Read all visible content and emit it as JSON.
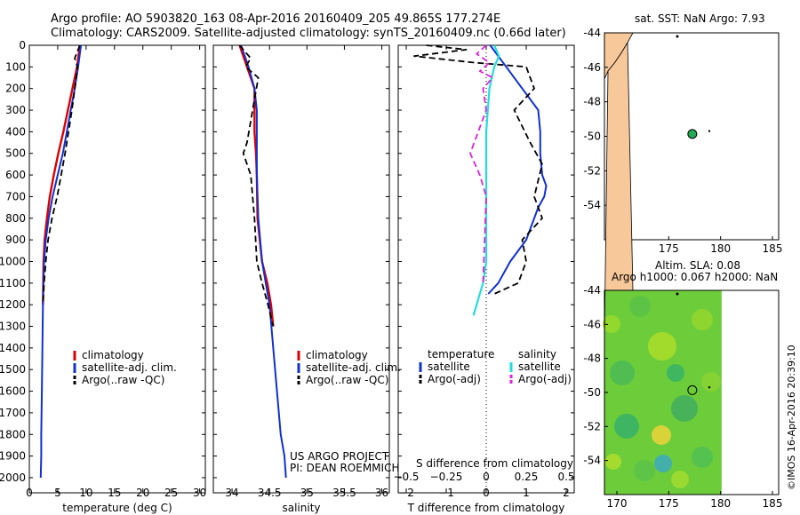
{
  "header": {
    "line1": "Argo profile: AO 5903820_163 08-Apr-2016 20160409_205 49.865S 177.274E",
    "line2": "Climatology: CARS2009. Satellite-adjusted climatology: synTS_20160409.nc (0.66d later)"
  },
  "colors": {
    "climatology": "#dd0000",
    "satellite": "#1030d0",
    "argo": "#000000",
    "salinity_sat": "#22dddd",
    "salinity_argo": "#dd22dd",
    "land": "#f7c89a",
    "argo_marker": "#22aa55"
  },
  "legend": {
    "climatology": "climatology",
    "satellite_adj": "satellite-adj. clim.",
    "argo": "Argo(..raw -QC)"
  },
  "diff_legend": {
    "temperature": "temperature",
    "salinity": "salinity",
    "satellite_t": "satellite",
    "argo_t": "Argo(-adj)",
    "satellite_s": "satellite",
    "argo_s": "Argo(-adj)"
  },
  "project": {
    "line1": "US ARGO PROJECT",
    "line2": "PI: DEAN ROEMMICH"
  },
  "side": {
    "sst_title": "sat. SST: NaN Argo: 7.93",
    "sla_title1": "Altim. SLA: 0.08",
    "sla_title2": "Argo h1000: 0.067 h2000: NaN",
    "credit": "©IMOS 16-Apr-2016 20:39:10"
  },
  "chart_data": [
    {
      "type": "line",
      "panel": "temperature",
      "xlabel": "temperature (deg C)",
      "ylabel": "",
      "xlim": [
        0,
        31
      ],
      "ylim": [
        0,
        2070
      ],
      "xticks": [
        0,
        5,
        10,
        15,
        20,
        25,
        30
      ],
      "yticks": [
        0,
        100,
        200,
        300,
        400,
        500,
        600,
        700,
        800,
        900,
        1000,
        1100,
        1200,
        1300,
        1400,
        1500,
        1600,
        1700,
        1800,
        1900,
        2000
      ],
      "series": [
        {
          "name": "climatology",
          "x": [
            8.9,
            8.4,
            7.6,
            6.8,
            6.0,
            5.1,
            4.3,
            3.6,
            3.1,
            2.7,
            2.5,
            2.4
          ],
          "y": [
            0,
            100,
            200,
            300,
            400,
            500,
            600,
            700,
            800,
            900,
            1000,
            1200
          ]
        },
        {
          "name": "satellite-adj. clim.",
          "x": [
            9.1,
            8.6,
            8.0,
            7.3,
            6.6,
            5.9,
            5.0,
            4.1,
            3.4,
            2.9,
            2.6,
            2.4,
            2.3,
            2.2,
            2.1,
            2.1,
            2.0
          ],
          "y": [
            0,
            100,
            200,
            300,
            400,
            500,
            600,
            700,
            800,
            900,
            1000,
            1200,
            1400,
            1600,
            1800,
            1900,
            2000
          ]
        },
        {
          "name": "Argo(..raw -QC)",
          "x": [
            8.9,
            8.0,
            8.5,
            8.0,
            7.5,
            6.9,
            6.3,
            5.6,
            4.9,
            4.0,
            3.3,
            2.9,
            2.6,
            2.4
          ],
          "y": [
            0,
            60,
            100,
            200,
            300,
            400,
            500,
            600,
            700,
            800,
            900,
            1000,
            1100,
            1200
          ]
        }
      ]
    },
    {
      "type": "line",
      "panel": "salinity",
      "xlabel": "salinity",
      "ylabel": "",
      "xlim": [
        33.75,
        36.1
      ],
      "ylim": [
        0,
        2070
      ],
      "xticks": [
        34,
        34.5,
        35,
        35.5,
        36
      ],
      "series": [
        {
          "name": "climatology",
          "x": [
            34.1,
            34.2,
            34.3,
            34.3,
            34.3,
            34.32,
            34.33,
            34.34,
            34.4,
            34.47,
            34.52,
            34.55
          ],
          "y": [
            0,
            100,
            200,
            300,
            400,
            500,
            600,
            800,
            1000,
            1100,
            1200,
            1300
          ]
        },
        {
          "name": "satellite-adj. clim.",
          "x": [
            34.12,
            34.22,
            34.3,
            34.33,
            34.33,
            34.33,
            34.33,
            34.35,
            34.4,
            34.45,
            34.5,
            34.55,
            34.6,
            34.65,
            34.7,
            34.72
          ],
          "y": [
            0,
            100,
            200,
            300,
            400,
            500,
            600,
            800,
            1000,
            1100,
            1200,
            1400,
            1600,
            1800,
            1900,
            2000
          ]
        },
        {
          "name": "Argo(..raw -QC)",
          "x": [
            34.1,
            34.25,
            34.18,
            34.35,
            34.3,
            34.2,
            34.15,
            34.25,
            34.3,
            34.33,
            34.4,
            34.48,
            34.55
          ],
          "y": [
            0,
            60,
            100,
            150,
            250,
            450,
            500,
            600,
            800,
            1000,
            1100,
            1200,
            1300
          ]
        }
      ]
    },
    {
      "type": "line",
      "panel": "difference",
      "xlabel": "T difference from climatology",
      "xlabel2": "S difference from climatology",
      "xlim": [
        -2.2,
        2.2
      ],
      "xticks": [
        -2,
        -1,
        0,
        1,
        2
      ],
      "xticks_s_values": [
        -0.5,
        -0.25,
        0,
        0.25,
        0.5
      ],
      "xticks_s_labels": [
        "−0.5",
        "−0.25",
        "0",
        "0.25",
        "0.5"
      ],
      "ylim": [
        0,
        2070
      ],
      "series": [
        {
          "name": "temperature satellite",
          "x": [
            0.1,
            0.3,
            0.5,
            0.9,
            1.3,
            1.35,
            1.35,
            1.4,
            1.5,
            1.45,
            1.3,
            1.2,
            1.0,
            0.6,
            0.3,
            0.05
          ],
          "y": [
            0,
            50,
            100,
            200,
            300,
            400,
            500,
            600,
            650,
            700,
            750,
            800,
            900,
            1000,
            1100,
            1150
          ]
        },
        {
          "name": "temperature Argo(-adj)",
          "x": [
            -1.5,
            -0.5,
            -1.8,
            -0.3,
            1.0,
            1.2,
            0.7,
            1.1,
            1.4,
            1.2,
            1.4,
            0.9,
            1.0,
            0.8,
            0.2
          ],
          "y": [
            0,
            20,
            50,
            80,
            100,
            200,
            300,
            450,
            550,
            700,
            800,
            900,
            1000,
            1100,
            1150
          ]
        },
        {
          "name": "salinity satellite",
          "x": [
            0.05,
            0.08,
            0.05,
            0.02,
            0.0,
            0.0,
            0.0,
            0.0,
            -0.02,
            -0.04,
            -0.06,
            -0.08
          ],
          "y": [
            0,
            50,
            100,
            200,
            400,
            600,
            800,
            1000,
            1100,
            1150,
            1200,
            1250
          ]
        },
        {
          "name": "salinity Argo(-adj)",
          "x": [
            0.0,
            -0.06,
            0.02,
            -0.04,
            0.04,
            -0.02,
            0.0,
            -0.05,
            -0.1,
            -0.04,
            0.0,
            -0.02
          ],
          "y": [
            0,
            40,
            80,
            120,
            150,
            200,
            300,
            400,
            500,
            600,
            700,
            1100
          ]
        }
      ]
    },
    {
      "type": "scatter",
      "panel": "sst_map",
      "title": "sat. SST: NaN Argo: 7.93",
      "xlim": [
        168.8,
        185.6
      ],
      "ylim": [
        -56,
        -44
      ],
      "xticks": [
        170,
        175,
        180,
        185
      ],
      "yticks": [
        -44,
        -46,
        -48,
        -50,
        -52,
        -54
      ],
      "ytick_labels": [
        "-44",
        "-46",
        "-48",
        "-50",
        "-52",
        "-54"
      ],
      "points": [
        {
          "x": 177.274,
          "y": -49.865,
          "label": "Argo"
        }
      ]
    },
    {
      "type": "heatmap",
      "panel": "sla_map",
      "title": "Altim. SLA: 0.08",
      "xlim": [
        168.8,
        185.6
      ],
      "ylim": [
        -56,
        -44
      ],
      "xticks": [
        170,
        175,
        180,
        185
      ],
      "yticks": [
        -44,
        -46,
        -48,
        -50,
        -52,
        -54
      ],
      "ytick_labels": [
        "-44",
        "-46",
        "-48",
        "-50",
        "-52",
        "-54"
      ],
      "points": [
        {
          "x": 177.274,
          "y": -49.865,
          "label": "Argo"
        }
      ]
    }
  ]
}
